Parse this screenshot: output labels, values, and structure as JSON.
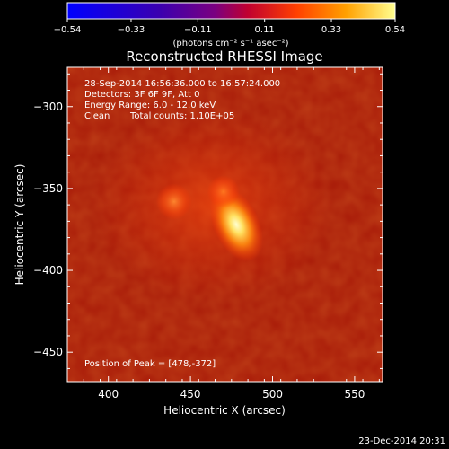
{
  "colorbar": {
    "ticks": [
      "-0.54",
      "-0.33",
      "-0.11",
      "0.11",
      "0.33",
      "0.54"
    ],
    "tick_values": [
      -0.54,
      -0.33,
      -0.11,
      0.11,
      0.33,
      0.54
    ],
    "range": [
      -0.54,
      0.54
    ],
    "unit_label": "(photons cm⁻² s⁻¹ asec⁻²)"
  },
  "title": "Reconstructed RHESSI Image",
  "info": {
    "time_range": "28-Sep-2014 16:56:36.000 to 16:57:24.000",
    "detectors": "Detectors: 3F 6F 9F, Att 0",
    "energy": "Energy Range: 6.0 - 12.0 keV",
    "method": "Clean",
    "counts": "Total counts: 1.10E+05",
    "peak": "Position of Peak = [478,-372]"
  },
  "footer_date": "23-Dec-2014 20:31",
  "chart_data": {
    "type": "heatmap",
    "title": "Reconstructed RHESSI Image",
    "xlabel": "Heliocentric X (arcsec)",
    "ylabel": "Heliocentric Y (arcsec)",
    "xlim": [
      375,
      567
    ],
    "ylim": [
      -468,
      -276
    ],
    "x_ticks": [
      400,
      450,
      500,
      550
    ],
    "y_ticks": [
      -300,
      -350,
      -400,
      -450
    ],
    "x_tick_labels": [
      "400",
      "450",
      "500",
      "550"
    ],
    "y_tick_labels": [
      "−300",
      "−350",
      "−400",
      "−450"
    ],
    "colormap": "hot",
    "value_range": [
      -0.54,
      0.54
    ],
    "background_level": 0.16,
    "sources": [
      {
        "x": 478,
        "y": -372,
        "value": 0.54
      },
      {
        "x": 470,
        "y": -352,
        "value": 0.3
      },
      {
        "x": 440,
        "y": -358,
        "value": 0.3
      }
    ],
    "peak": [
      478,
      -372
    ]
  }
}
